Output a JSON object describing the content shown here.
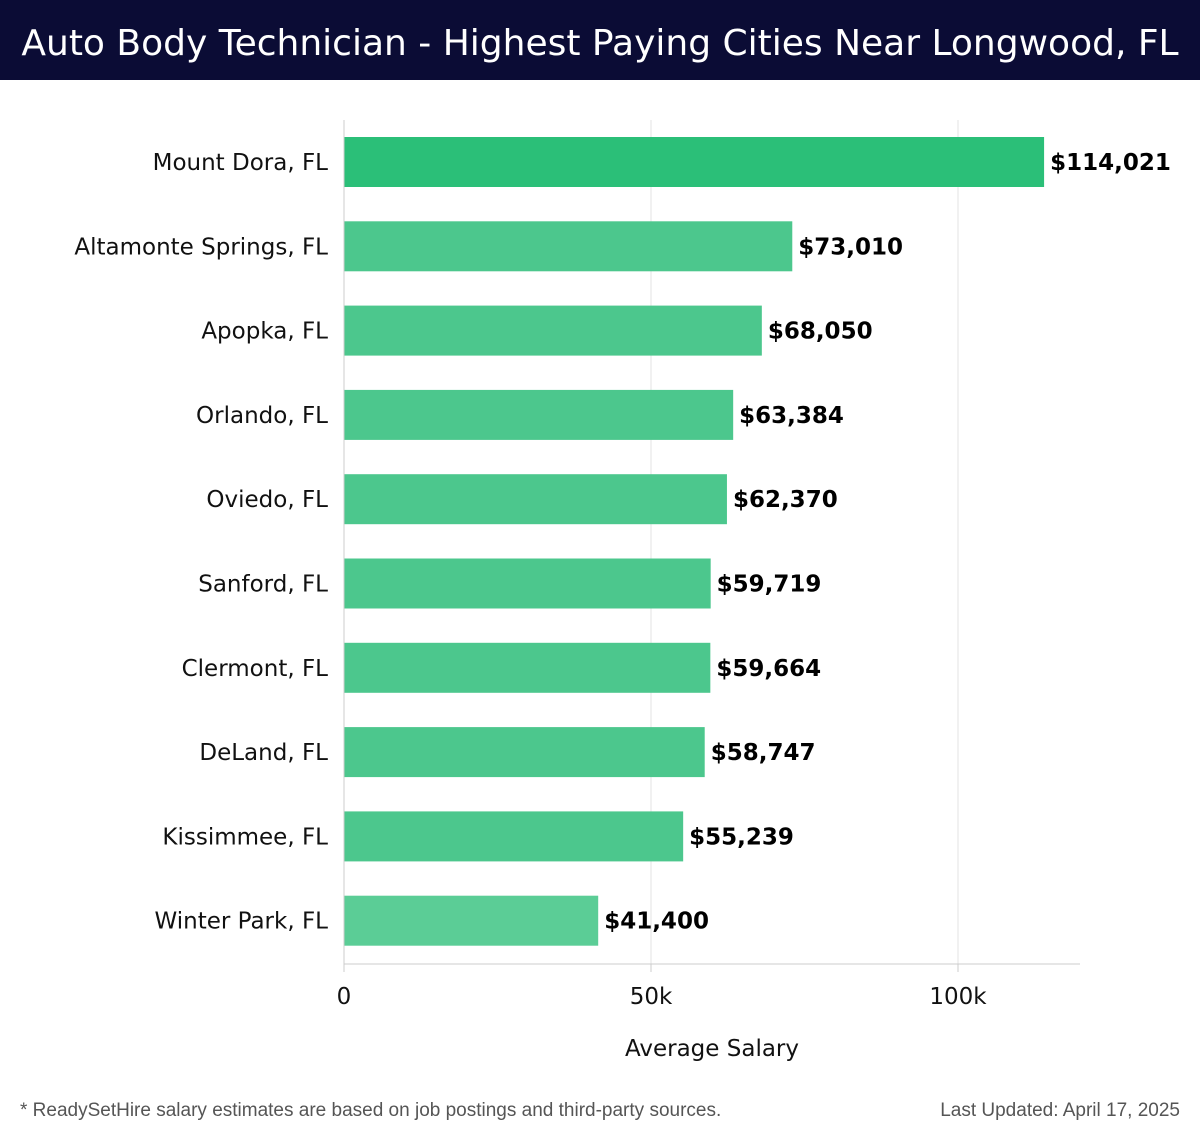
{
  "header": {
    "title": "Auto Body Technician - Highest Paying Cities Near Longwood, FL"
  },
  "chart_data": {
    "type": "bar",
    "orientation": "horizontal",
    "title": "Auto Body Technician - Highest Paying Cities Near Longwood, FL",
    "xlabel": "Average Salary",
    "ylabel": "",
    "xlim": [
      0,
      120000
    ],
    "grid": true,
    "categories": [
      "Mount Dora, FL",
      "Altamonte Springs, FL",
      "Apopka, FL",
      "Orlando, FL",
      "Oviedo, FL",
      "Sanford, FL",
      "Clermont, FL",
      "DeLand, FL",
      "Kissimmee, FL",
      "Winter Park, FL"
    ],
    "values": [
      114021,
      73010,
      68050,
      63384,
      62370,
      59719,
      59664,
      58747,
      55239,
      41400
    ],
    "value_labels": [
      "$114,021",
      "$73,010",
      "$68,050",
      "$63,384",
      "$62,370",
      "$59,719",
      "$59,664",
      "$58,747",
      "$55,239",
      "$41,400"
    ],
    "x_ticks": [
      {
        "value": 0,
        "label": "0"
      },
      {
        "value": 50000,
        "label": "50k"
      },
      {
        "value": 100000,
        "label": "100k"
      }
    ],
    "colors": {
      "top_bar": "#2bbf78",
      "bars": "#4cc78d",
      "last_bar": "#5bcd96",
      "grid": "#e3e3e3",
      "axis": "#cccccc",
      "header_bg": "#0b0c35"
    }
  },
  "footer": {
    "note": "* ReadySetHire salary estimates are based on job postings and third-party sources.",
    "updated": "Last Updated: April 17, 2025"
  }
}
